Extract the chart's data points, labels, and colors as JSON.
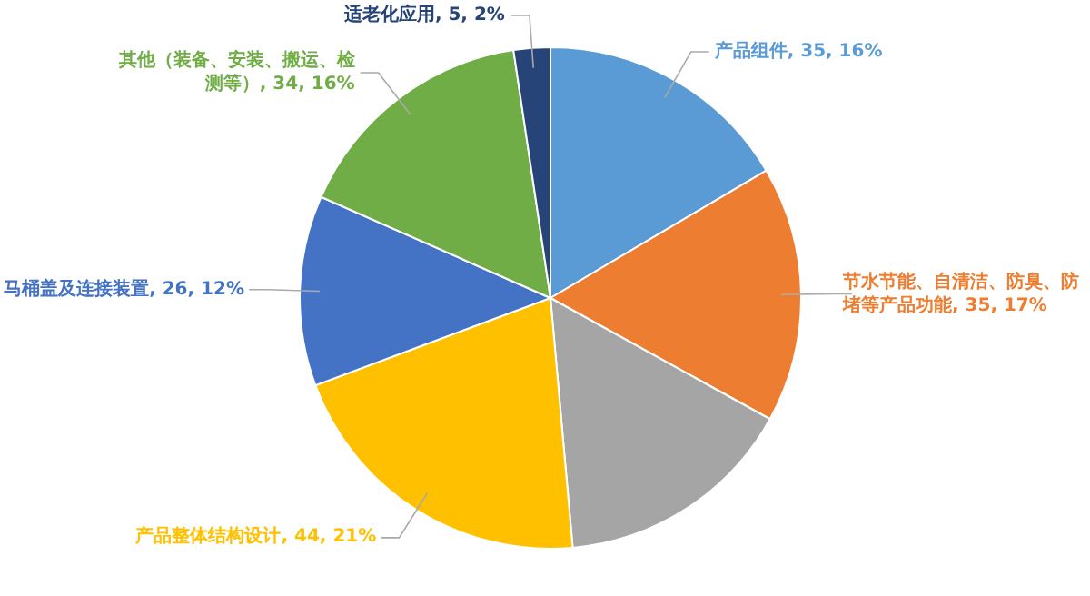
{
  "chart_data": {
    "type": "pie",
    "categories": [
      "产品组件",
      "节水节能、自清洁、防臭、防堵等产品功能",
      null,
      "产品整体结构设计",
      "马桶盖及连接装置",
      "其他（装备、安装、搬运、检测等）",
      "适老化应用"
    ],
    "values": [
      35,
      35,
      33,
      44,
      26,
      34,
      5
    ],
    "colors": [
      "#5b9bd5",
      "#ed7d31",
      "#a5a5a5",
      "#ffc000",
      "#4472c4",
      "#70ad47",
      "#264478"
    ],
    "value_labels": [
      "35, 16%",
      "35, 17%",
      null,
      "44, 21%",
      "26, 12%",
      "34, 16%",
      "5, 2%"
    ]
  }
}
